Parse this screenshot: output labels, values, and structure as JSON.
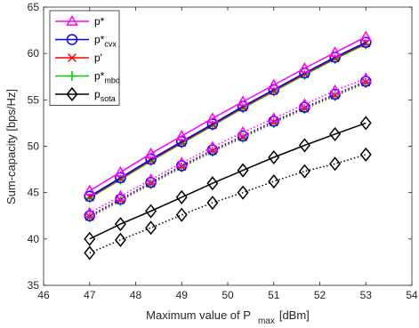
{
  "chart_data": {
    "type": "line",
    "title": "",
    "xlabel": "Maximum value of P",
    "xlabel_sub": "max",
    "xlabel_unit": "[dBm]",
    "ylabel": "Sum-capacity [bps/Hz]",
    "xlim": [
      46,
      54
    ],
    "ylim": [
      35,
      65
    ],
    "xticks": [
      "46",
      "47",
      "48",
      "49",
      "50",
      "51",
      "52",
      "53",
      "54"
    ],
    "yticks": [
      "35",
      "40",
      "45",
      "50",
      "55",
      "60",
      "65"
    ],
    "grid": false,
    "legend_position": "top-left",
    "x": [
      47,
      47.67,
      48.33,
      49,
      49.67,
      50.33,
      51,
      51.67,
      52.33,
      53
    ],
    "series": [
      {
        "name": "p*",
        "sub": "",
        "color": "#ff00ff",
        "marker": "triangle",
        "values": [
          45.2,
          47.2,
          49.2,
          51.1,
          53.0,
          54.8,
          56.6,
          58.4,
          60.1,
          61.8
        ]
      },
      {
        "name": "p*",
        "sub": "cvx",
        "color": "#0000ff",
        "marker": "circle",
        "values": [
          44.6,
          46.6,
          48.6,
          50.5,
          52.4,
          54.3,
          56.1,
          57.9,
          59.6,
          61.2
        ]
      },
      {
        "name": "p'",
        "sub": "",
        "color": "#ff0000",
        "marker": "x",
        "values": [
          44.5,
          46.5,
          48.5,
          50.4,
          52.3,
          54.2,
          56.0,
          57.8,
          59.5,
          61.1
        ]
      },
      {
        "name": "p*",
        "sub": "mbd",
        "color": "#00cc00",
        "marker": "plus",
        "values": [
          44.4,
          46.4,
          48.4,
          50.3,
          52.2,
          54.1,
          55.9,
          57.7,
          59.4,
          61.0
        ]
      },
      {
        "name": "p",
        "sub": "sota",
        "color": "#000000",
        "marker": "diamond",
        "values": [
          40.0,
          41.6,
          43.0,
          44.5,
          46.0,
          47.4,
          48.8,
          50.1,
          51.3,
          52.5
        ]
      }
    ],
    "dotted_series": [
      {
        "of": "p*",
        "color": "#ff00ff",
        "marker": "triangle",
        "values": [
          42.8,
          44.6,
          46.4,
          48.2,
          49.9,
          51.5,
          53.0,
          54.5,
          56.0,
          57.3
        ]
      },
      {
        "of": "p*cvx",
        "color": "#0000ff",
        "marker": "circle",
        "values": [
          42.5,
          44.3,
          46.1,
          47.9,
          49.6,
          51.1,
          52.7,
          54.2,
          55.6,
          57.0
        ]
      },
      {
        "of": "p'",
        "color": "#ff0000",
        "marker": "x",
        "values": [
          42.4,
          44.2,
          46.0,
          47.8,
          49.5,
          51.0,
          52.6,
          54.1,
          55.5,
          56.9
        ]
      },
      {
        "of": "p*mbd",
        "color": "#00cc00",
        "marker": "plus",
        "values": [
          42.3,
          44.1,
          45.9,
          47.7,
          49.4,
          50.9,
          52.5,
          54.0,
          55.4,
          56.8
        ]
      },
      {
        "of": "psota",
        "color": "#000000",
        "marker": "diamond",
        "values": [
          38.5,
          39.9,
          41.2,
          42.6,
          43.9,
          45.0,
          46.2,
          47.3,
          48.1,
          49.1
        ]
      }
    ]
  }
}
